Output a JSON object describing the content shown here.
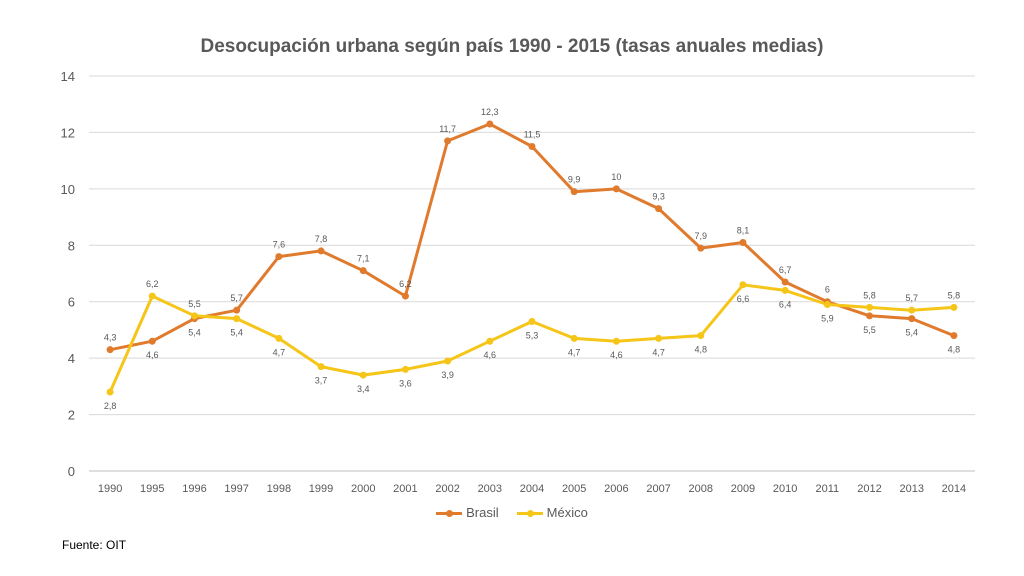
{
  "chart_data": {
    "type": "line",
    "title": "Desocupación urbana según país 1990 - 2015 (tasas anuales medias)",
    "categories": [
      "1990",
      "1995",
      "1996",
      "1997",
      "1998",
      "1999",
      "2000",
      "2001",
      "2002",
      "2003",
      "2004",
      "2005",
      "2006",
      "2007",
      "2008",
      "2009",
      "2010",
      "2011",
      "2012",
      "2013",
      "2014"
    ],
    "ylim": [
      0,
      14
    ],
    "yticks": [
      "0",
      "2",
      "4",
      "6",
      "8",
      "10",
      "12",
      "14"
    ],
    "grid": true,
    "legend_position": "bottom",
    "series": [
      {
        "name": "Brasil",
        "color": "#E07B2E",
        "values": [
          4.3,
          4.6,
          5.4,
          5.7,
          7.6,
          7.8,
          7.1,
          6.2,
          11.7,
          12.3,
          11.5,
          9.9,
          10,
          9.3,
          7.9,
          8.1,
          6.7,
          6,
          5.5,
          5.4,
          4.8
        ],
        "labels": [
          "4,3",
          "4,6",
          "5,4",
          "5,7",
          "7,6",
          "7,8",
          "7,1",
          "6,2",
          "11,7",
          "12,3",
          "11,5",
          "9,9",
          "10",
          "9,3",
          "7,9",
          "8,1",
          "6,7",
          "6",
          "5,5",
          "5,4",
          "4,8"
        ]
      },
      {
        "name": "México",
        "color": "#F5C518",
        "values": [
          2.8,
          6.2,
          5.5,
          5.4,
          4.7,
          3.7,
          3.4,
          3.6,
          3.9,
          4.6,
          5.3,
          4.7,
          4.6,
          4.7,
          4.8,
          6.6,
          6.4,
          5.9,
          5.8,
          5.7,
          5.8
        ],
        "labels": [
          "2,8",
          "6,2",
          "5,5",
          "5,4",
          "4,7",
          "3,7",
          "3,4",
          "3,6",
          "3,9",
          "4,6",
          "5,3",
          "4,7",
          "4,6",
          "4,7",
          "4,8",
          "6,6",
          "6,4",
          "5,9",
          "5,8",
          "5,7",
          "5,8"
        ]
      }
    ]
  },
  "source": "Fuente: OIT"
}
